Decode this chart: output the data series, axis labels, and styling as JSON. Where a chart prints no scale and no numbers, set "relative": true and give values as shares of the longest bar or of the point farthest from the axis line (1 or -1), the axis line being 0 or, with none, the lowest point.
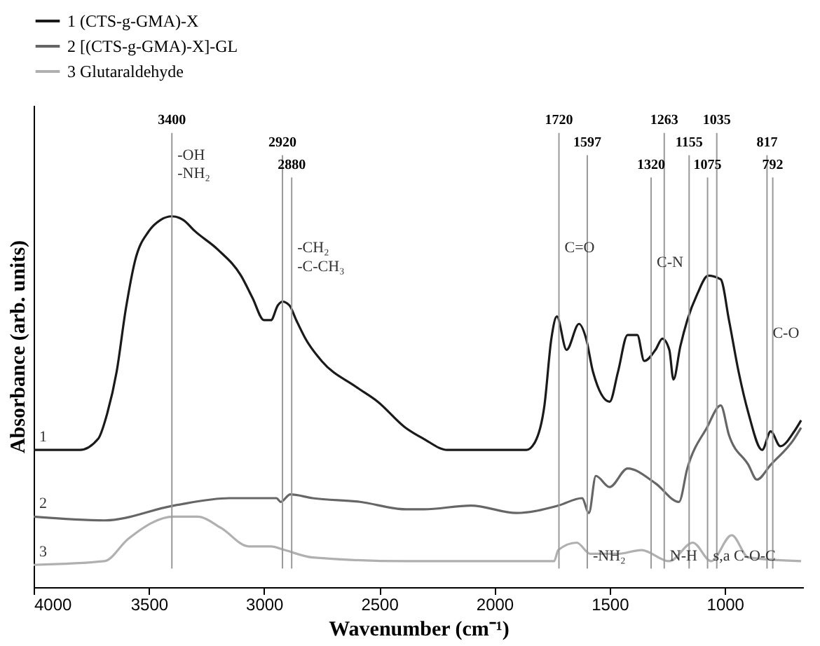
{
  "chart_data": {
    "type": "line",
    "relative": true,
    "xlabel": "Wavenumber (cm⁻¹)",
    "ylabel": "Absorbance (arb. units)",
    "xlim": [
      4000,
      660
    ],
    "xticks": [
      4000,
      3500,
      3000,
      2500,
      2000,
      1500,
      1000
    ],
    "legend": "top",
    "grid": false,
    "series": [
      {
        "name": "1 (CTS-g-GMA)-X",
        "color": "#1a1a1a",
        "x": [
          4000,
          3800,
          3720,
          3680,
          3640,
          3600,
          3560,
          3500,
          3450,
          3400,
          3350,
          3300,
          3200,
          3100,
          3050,
          3000,
          2970,
          2940,
          2920,
          2890,
          2860,
          2820,
          2750,
          2600,
          2506,
          2386,
          2307,
          2205,
          1861,
          1825,
          1783,
          1753,
          1729,
          1687,
          1633,
          1602,
          1572,
          1500,
          1464,
          1422,
          1380,
          1350,
          1301,
          1271,
          1241,
          1223,
          1193,
          1163,
          1120,
          1072,
          1018,
          982,
          940,
          898,
          838,
          801,
          759,
          699,
          669
        ],
        "values": [
          0.37,
          0.37,
          0.4,
          0.47,
          0.58,
          0.75,
          0.88,
          0.96,
          0.99,
          1,
          0.99,
          0.96,
          0.91,
          0.84,
          0.78,
          0.72,
          0.72,
          0.76,
          0.77,
          0.76,
          0.72,
          0.67,
          0.61,
          0.54,
          0.5,
          0.43,
          0.4,
          0.37,
          0.37,
          0.39,
          0.49,
          0.67,
          0.73,
          0.64,
          0.71,
          0.67,
          0.58,
          0.5,
          0.58,
          0.68,
          0.68,
          0.61,
          0.64,
          0.67,
          0.64,
          0.56,
          0.65,
          0.72,
          0.79,
          0.84,
          0.83,
          0.72,
          0.58,
          0.47,
          0.37,
          0.42,
          0.38,
          0.42,
          0.45
        ]
      },
      {
        "name": "2 [(CTS-g-GMA)-X]-GL",
        "color": "#666666",
        "x": [
          4000,
          3693,
          3392,
          3151,
          2946,
          2928,
          2886,
          2789,
          2584,
          2386,
          2307,
          2102,
          1904,
          1723,
          1620,
          1590,
          1560,
          1500,
          1422,
          1301,
          1199,
          1163,
          1078,
          1018,
          982,
          898,
          861,
          801,
          699,
          669
        ],
        "values": [
          0.19,
          0.18,
          0.22,
          0.24,
          0.24,
          0.23,
          0.25,
          0.24,
          0.23,
          0.21,
          0.21,
          0.22,
          0.2,
          0.22,
          0.24,
          0.2,
          0.3,
          0.27,
          0.32,
          0.28,
          0.23,
          0.32,
          0.43,
          0.49,
          0.41,
          0.33,
          0.29,
          0.33,
          0.4,
          0.43
        ]
      },
      {
        "name": "3 Glutaraldehyde",
        "color": "#b0b0b0",
        "x": [
          4000,
          3693,
          3590,
          3392,
          3289,
          3187,
          3066,
          2970,
          2910,
          2789,
          2386,
          1741,
          1723,
          1643,
          1584,
          1464,
          1362,
          1241,
          1139,
          1060,
          970,
          898,
          669
        ],
        "values": [
          0.06,
          0.07,
          0.13,
          0.19,
          0.19,
          0.16,
          0.11,
          0.11,
          0.1,
          0.08,
          0.07,
          0.07,
          0.1,
          0.12,
          0.09,
          0.09,
          0.1,
          0.07,
          0.12,
          0.07,
          0.14,
          0.08,
          0.07
        ]
      }
    ],
    "ref_lines": [
      {
        "axis": "x",
        "value": 3400,
        "label": "3400",
        "color": "#999999"
      },
      {
        "axis": "x",
        "value": 2920,
        "label": "2920",
        "color": "#999999"
      },
      {
        "axis": "x",
        "value": 2880,
        "label": "2880",
        "color": "#999999"
      },
      {
        "axis": "x",
        "value": 1720,
        "label": "1720",
        "color": "#999999"
      },
      {
        "axis": "x",
        "value": 1597,
        "label": "1597",
        "color": "#999999"
      },
      {
        "axis": "x",
        "value": 1320,
        "label": "1320",
        "color": "#999999"
      },
      {
        "axis": "x",
        "value": 1263,
        "label": "1263",
        "color": "#999999"
      },
      {
        "axis": "x",
        "value": 1155,
        "label": "1155",
        "color": "#999999"
      },
      {
        "axis": "x",
        "value": 1075,
        "label": "1075",
        "color": "#999999"
      },
      {
        "axis": "x",
        "value": 1035,
        "label": "1035",
        "color": "#999999"
      },
      {
        "axis": "x",
        "value": 817,
        "label": "817",
        "color": "#999999"
      },
      {
        "axis": "x",
        "value": 792,
        "label": "792",
        "color": "#999999"
      }
    ],
    "annotations": [
      {
        "text": "1",
        "x": 4000,
        "y": 0.37
      },
      {
        "text": "2",
        "x": 4000,
        "y": 0.19
      },
      {
        "text": "3",
        "x": 4000,
        "y": 0.06
      },
      {
        "text": "-OH",
        "x": 3400,
        "y": 1.13
      },
      {
        "text": "-NH₂",
        "x": 3400,
        "y": 1.08
      },
      {
        "text": "-CH₂",
        "x": 2880,
        "y": 0.88
      },
      {
        "text": "-C-CH₃",
        "x": 2880,
        "y": 0.83
      },
      {
        "text": "C=O",
        "x": 1720,
        "y": 0.88
      },
      {
        "text": "C-N",
        "x": 1320,
        "y": 0.84
      },
      {
        "text": "-NH₂",
        "x": 1597,
        "y": 0.05
      },
      {
        "text": "N-H",
        "x": 1263,
        "y": 0.05
      },
      {
        "text": "s,a C-O-C",
        "x": 1075,
        "y": 0.05
      },
      {
        "text": "C-O",
        "x": 817,
        "y": 0.65
      }
    ]
  }
}
